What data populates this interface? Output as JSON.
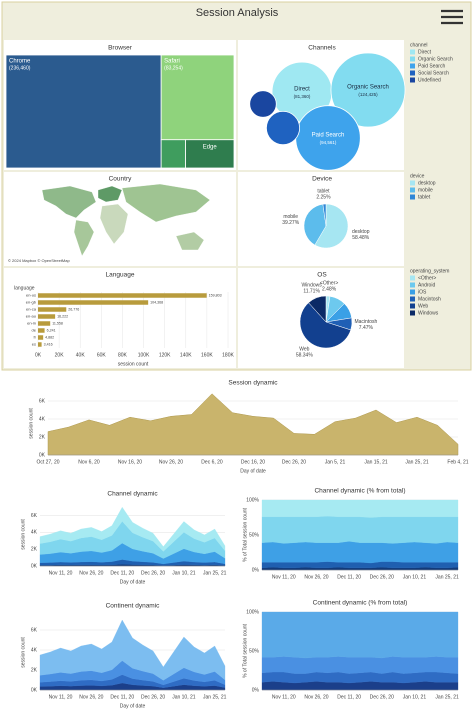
{
  "header": {
    "title": "Session Analysis"
  },
  "chart_data": [
    {
      "type": "treemap",
      "title": "Browser",
      "categories": [
        "Chrome",
        "Safari",
        "Edge",
        null
      ],
      "values": [
        236460,
        83254,
        18500,
        9250
      ],
      "value_labels": [
        "(236,460)",
        "(83,254)",
        null,
        null
      ],
      "colors": [
        "#2b5b8f",
        "#8fd37c",
        "#2f7d4e",
        "#3f9d5e"
      ]
    },
    {
      "type": "bubble",
      "title": "Channels",
      "legend_title": "channel",
      "categories": [
        "Direct",
        "Organic Search",
        "Paid Search",
        "Social Search",
        "Undefined"
      ],
      "values": [
        81360,
        124425,
        94561,
        25000,
        16000
      ],
      "value_labels": [
        "(81,360)",
        "(124,425)",
        "(94,561)",
        null,
        null
      ],
      "colors": [
        "#9fe8f2",
        "#82dcf0",
        "#3ea3ec",
        "#1f62c0",
        "#1a46a0"
      ]
    },
    {
      "type": "map",
      "title": "Country",
      "attribution": "© 2024 Mapbox © OpenStreetMap"
    },
    {
      "type": "pie",
      "title": "Device",
      "legend_title": "device",
      "categories": [
        "desktop",
        "mobile",
        "tablet"
      ],
      "values": [
        58.48,
        39.27,
        2.25
      ],
      "value_labels": [
        "58.48%",
        "39.27%",
        "2.25%"
      ],
      "colors": [
        "#a6e6f2",
        "#5cbcec",
        "#2f86d6"
      ]
    },
    {
      "type": "hbar",
      "title": "Language",
      "y_label": "language",
      "x_label": "session count",
      "categories": [
        "en-us",
        "en-gb",
        "en-ca",
        "en-au",
        "en-in",
        "de",
        "fr",
        "es"
      ],
      "values": [
        159803,
        104368,
        26776,
        16222,
        11558,
        6241,
        4882,
        3416
      ],
      "value_labels": [
        "159,803",
        "104,368",
        "26,776",
        "16,222",
        "11,558",
        "6,241",
        "4,882",
        "3,416"
      ],
      "color": "#b89b3c",
      "xlim": [
        0,
        180000
      ],
      "xticks": [
        {
          "value": 0,
          "label": "0K"
        },
        {
          "value": 20000,
          "label": "20K"
        },
        {
          "value": 40000,
          "label": "40K"
        },
        {
          "value": 60000,
          "label": "60K"
        },
        {
          "value": 80000,
          "label": "80K"
        },
        {
          "value": 100000,
          "label": "100K"
        },
        {
          "value": 120000,
          "label": "120K"
        },
        {
          "value": 140000,
          "label": "140K"
        },
        {
          "value": 160000,
          "label": "160K"
        },
        {
          "value": 180000,
          "label": "180K"
        }
      ]
    },
    {
      "type": "pie",
      "title": "OS",
      "legend_title": "operating_system",
      "categories": [
        "<Other>",
        "Android",
        "iOS",
        "Macintosh",
        "Web",
        "Windows"
      ],
      "values": [
        2.48,
        10,
        10,
        7.47,
        58.34,
        11.71
      ],
      "value_labels": [
        "2.48%",
        null,
        null,
        "7.47%",
        "58.34%",
        "11.71%"
      ],
      "colors": [
        "#a6e6f2",
        "#6dc9ee",
        "#3aa0e6",
        "#1f5fb5",
        "#12408f",
        "#0b2a66"
      ]
    },
    {
      "type": "area",
      "title": "Session dynamic",
      "y_label": "session count",
      "x_label": "Day of date",
      "categories": [
        "Oct 27, 20",
        null,
        "Nov 6, 20",
        null,
        "Nov 16, 20",
        null,
        "Nov 26, 20",
        null,
        "Dec 6, 20",
        null,
        "Dec 16, 20",
        null,
        "Dec 26, 20",
        null,
        "Jan 5, 21",
        null,
        "Jan 15, 21",
        null,
        "Jan 25, 21",
        null,
        "Feb 4, 21"
      ],
      "values": [
        2600,
        3100,
        3900,
        3300,
        4200,
        3800,
        4300,
        4500,
        6800,
        4700,
        4300,
        4100,
        2400,
        2300,
        3700,
        4100,
        5000,
        3600,
        4200,
        3300,
        1200
      ],
      "color": "#c9b46c",
      "ylim": [
        0,
        7000
      ],
      "grid": true,
      "yticks": [
        {
          "value": 0,
          "label": "0K"
        },
        {
          "value": 2000,
          "label": "2K"
        },
        {
          "value": 4000,
          "label": "4K"
        },
        {
          "value": 6000,
          "label": "6K"
        }
      ]
    },
    {
      "type": "stacked_area",
      "title": "Channel dynamic",
      "y_label": "session count",
      "x_label": "Day of date",
      "categories": [
        null,
        null,
        "Nov 11, 20",
        null,
        null,
        "Nov 26, 20",
        null,
        null,
        "Dec 11, 20",
        null,
        null,
        "Dec 26, 20",
        null,
        null,
        "Jan 10, 21",
        null,
        null,
        "Jan 25, 21",
        null
      ],
      "series": [
        {
          "color": "#123a7a",
          "values": [
            110,
            110,
            130,
            120,
            130,
            140,
            120,
            140,
            210,
            160,
            140,
            120,
            70,
            110,
            160,
            130,
            110,
            130,
            70
          ]
        },
        {
          "color": "#1f5fb0",
          "values": [
            280,
            300,
            340,
            310,
            350,
            370,
            330,
            380,
            560,
            420,
            360,
            310,
            180,
            300,
            420,
            340,
            300,
            350,
            190
          ]
        },
        {
          "color": "#3ea0e6",
          "values": [
            980,
            1060,
            1180,
            1090,
            1230,
            1290,
            1150,
            1340,
            1960,
            1460,
            1260,
            1090,
            640,
            1060,
            1480,
            1200,
            1040,
            1230,
            670
          ]
        },
        {
          "color": "#7fd6ee",
          "values": [
            1300,
            1410,
            1550,
            1440,
            1630,
            1700,
            1520,
            1780,
            2590,
            1920,
            1670,
            1440,
            850,
            1410,
            1960,
            1590,
            1370,
            1630,
            890
          ]
        },
        {
          "color": "#a6eaf2",
          "values": [
            830,
            920,
            1000,
            940,
            1060,
            1100,
            980,
            1160,
            1680,
            1240,
            1070,
            940,
            560,
            920,
            1280,
            1040,
            880,
            1060,
            580
          ]
        }
      ],
      "ylim": [
        0,
        7500
      ],
      "grid": true,
      "yticks": [
        {
          "value": 0,
          "label": "0K"
        },
        {
          "value": 2000,
          "label": "2K"
        },
        {
          "value": 4000,
          "label": "4K"
        },
        {
          "value": 6000,
          "label": "6K"
        }
      ]
    },
    {
      "type": "stacked_area",
      "title": "Channel dynamic (% from total)",
      "y_label": "% of Total session count",
      "categories": [
        null,
        null,
        "Nov 11, 20",
        null,
        null,
        "Nov 26, 20",
        null,
        null,
        "Dec 11, 20",
        null,
        null,
        "Dec 26, 20",
        null,
        null,
        "Jan 10, 21",
        null,
        null,
        "Jan 25, 21",
        null
      ],
      "series": [
        {
          "color": "#123a7a",
          "values": [
            3,
            4,
            3,
            3,
            4,
            3,
            3,
            4,
            3,
            3,
            3,
            4,
            3,
            3,
            3,
            4,
            3,
            3,
            4
          ]
        },
        {
          "color": "#1f5fb0",
          "values": [
            8,
            7,
            8,
            8,
            7,
            8,
            9,
            7,
            8,
            8,
            7,
            8,
            9,
            8,
            8,
            7,
            8,
            8,
            7
          ]
        },
        {
          "color": "#3ea0e6",
          "values": [
            28,
            29,
            27,
            28,
            29,
            28,
            27,
            28,
            30,
            28,
            29,
            27,
            26,
            28,
            29,
            28,
            27,
            29,
            28
          ]
        },
        {
          "color": "#7fd6ee",
          "values": [
            37,
            36,
            38,
            37,
            36,
            37,
            38,
            37,
            35,
            37,
            36,
            37,
            38,
            37,
            36,
            37,
            38,
            36,
            37
          ]
        },
        {
          "color": "#a6eaf2",
          "values": [
            24,
            24,
            24,
            24,
            24,
            24,
            23,
            24,
            24,
            24,
            25,
            24,
            24,
            24,
            24,
            24,
            24,
            24,
            24
          ]
        }
      ],
      "ylim": [
        0,
        100
      ],
      "grid": true,
      "yticks": [
        {
          "value": 0,
          "label": "0%"
        },
        {
          "value": 50,
          "label": "50%"
        },
        {
          "value": 100,
          "label": "100%"
        }
      ]
    },
    {
      "type": "stacked_area",
      "title": "Continent dynamic",
      "y_label": "session count",
      "x_label": "Day of date",
      "categories": [
        null,
        null,
        "Nov 11, 20",
        null,
        null,
        "Nov 26, 20",
        null,
        null,
        "Dec 11, 20",
        null,
        null,
        "Dec 26, 20",
        null,
        null,
        "Jan 10, 21",
        null,
        null,
        "Jan 25, 21",
        null
      ],
      "series": [
        {
          "color": "#1b3f8a",
          "values": [
            350,
            380,
            420,
            390,
            440,
            460,
            410,
            480,
            700,
            520,
            450,
            390,
            230,
            380,
            530,
            430,
            370,
            440,
            240
          ]
        },
        {
          "color": "#2f6cc4",
          "values": [
            420,
            460,
            500,
            470,
            530,
            550,
            490,
            580,
            840,
            620,
            540,
            470,
            280,
            460,
            640,
            520,
            440,
            530,
            290
          ]
        },
        {
          "color": "#4a90e2",
          "values": [
            700,
            760,
            840,
            780,
            880,
            920,
            820,
            960,
            1400,
            1040,
            900,
            780,
            460,
            760,
            1060,
            860,
            740,
            880,
            480
          ]
        },
        {
          "color": "#7cbdf0",
          "values": [
            2030,
            2200,
            2440,
            2260,
            2550,
            2670,
            2380,
            2780,
            4060,
            3020,
            2610,
            2260,
            1330,
            2200,
            3070,
            2490,
            2150,
            2550,
            1390
          ]
        }
      ],
      "ylim": [
        0,
        7500
      ],
      "grid": true,
      "yticks": [
        {
          "value": 0,
          "label": "0K"
        },
        {
          "value": 2000,
          "label": "2K"
        },
        {
          "value": 4000,
          "label": "4K"
        },
        {
          "value": 6000,
          "label": "6K"
        }
      ]
    },
    {
      "type": "stacked_area",
      "title": "Continent dynamic (% from total)",
      "y_label": "% of Total session count",
      "categories": [
        null,
        null,
        "Nov 11, 20",
        null,
        null,
        "Nov 26, 20",
        null,
        null,
        "Dec 11, 20",
        null,
        null,
        "Dec 26, 20",
        null,
        null,
        "Jan 10, 21",
        null,
        null,
        "Jan 25, 21",
        null
      ],
      "series": [
        {
          "color": "#1b3f8a",
          "values": [
            10,
            11,
            10,
            9,
            10,
            11,
            10,
            10,
            9,
            10,
            11,
            10,
            10,
            9,
            10,
            11,
            10,
            10,
            10
          ]
        },
        {
          "color": "#2f6cc4",
          "values": [
            12,
            12,
            13,
            12,
            11,
            12,
            12,
            13,
            12,
            12,
            12,
            11,
            13,
            12,
            12,
            12,
            13,
            12,
            11
          ]
        },
        {
          "color": "#4a90e2",
          "values": [
            20,
            19,
            20,
            21,
            20,
            19,
            20,
            20,
            21,
            20,
            19,
            20,
            20,
            21,
            20,
            19,
            20,
            20,
            21
          ]
        },
        {
          "color": "#5aaae8",
          "values": [
            58,
            58,
            57,
            58,
            59,
            58,
            58,
            57,
            58,
            58,
            58,
            59,
            57,
            58,
            58,
            58,
            57,
            58,
            58
          ]
        }
      ],
      "ylim": [
        0,
        100
      ],
      "grid": true,
      "yticks": [
        {
          "value": 0,
          "label": "0%"
        },
        {
          "value": 50,
          "label": "50%"
        },
        {
          "value": 100,
          "label": "100%"
        }
      ]
    }
  ]
}
